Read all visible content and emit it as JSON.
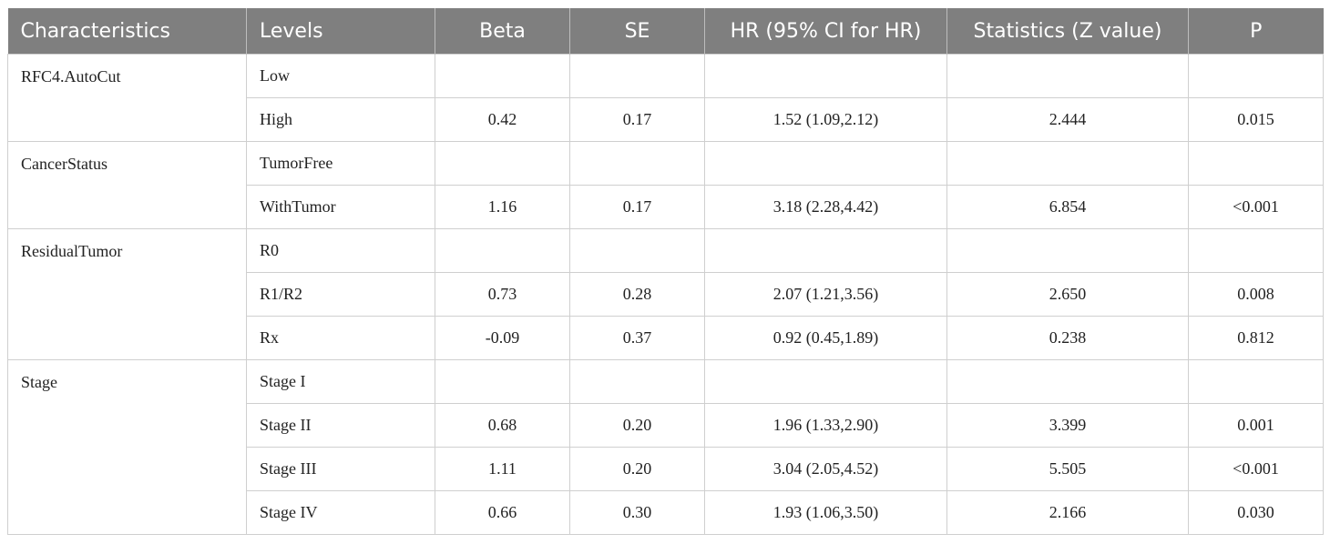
{
  "table": {
    "headers": [
      "Characteristics",
      "Levels",
      "Beta",
      "SE",
      "HR (95% CI for HR)",
      "Statistics (Z value)",
      "P"
    ],
    "groups": [
      {
        "name": "RFC4.AutoCut",
        "rows": [
          [
            "Low",
            "",
            "",
            "",
            "",
            ""
          ],
          [
            "High",
            "0.42",
            "0.17",
            "1.52 (1.09,2.12)",
            "2.444",
            "0.015"
          ]
        ]
      },
      {
        "name": "CancerStatus",
        "rows": [
          [
            "TumorFree",
            "",
            "",
            "",
            "",
            ""
          ],
          [
            "WithTumor",
            "1.16",
            "0.17",
            "3.18 (2.28,4.42)",
            "6.854",
            "<0.001"
          ]
        ]
      },
      {
        "name": "ResidualTumor",
        "rows": [
          [
            "R0",
            "",
            "",
            "",
            "",
            ""
          ],
          [
            "R1/R2",
            "0.73",
            "0.28",
            "2.07 (1.21,3.56)",
            "2.650",
            "0.008"
          ],
          [
            "Rx",
            "-0.09",
            "0.37",
            "0.92 (0.45,1.89)",
            "0.238",
            "0.812"
          ]
        ]
      },
      {
        "name": "Stage",
        "rows": [
          [
            "Stage I",
            "",
            "",
            "",
            "",
            ""
          ],
          [
            "Stage II",
            "0.68",
            "0.20",
            "1.96 (1.33,2.90)",
            "3.399",
            "0.001"
          ],
          [
            "Stage III",
            "1.11",
            "0.20",
            "3.04 (2.05,4.52)",
            "5.505",
            "<0.001"
          ],
          [
            "Stage IV",
            "0.66",
            "0.30",
            "1.93 (1.06,3.50)",
            "2.166",
            "0.030"
          ]
        ]
      }
    ]
  }
}
